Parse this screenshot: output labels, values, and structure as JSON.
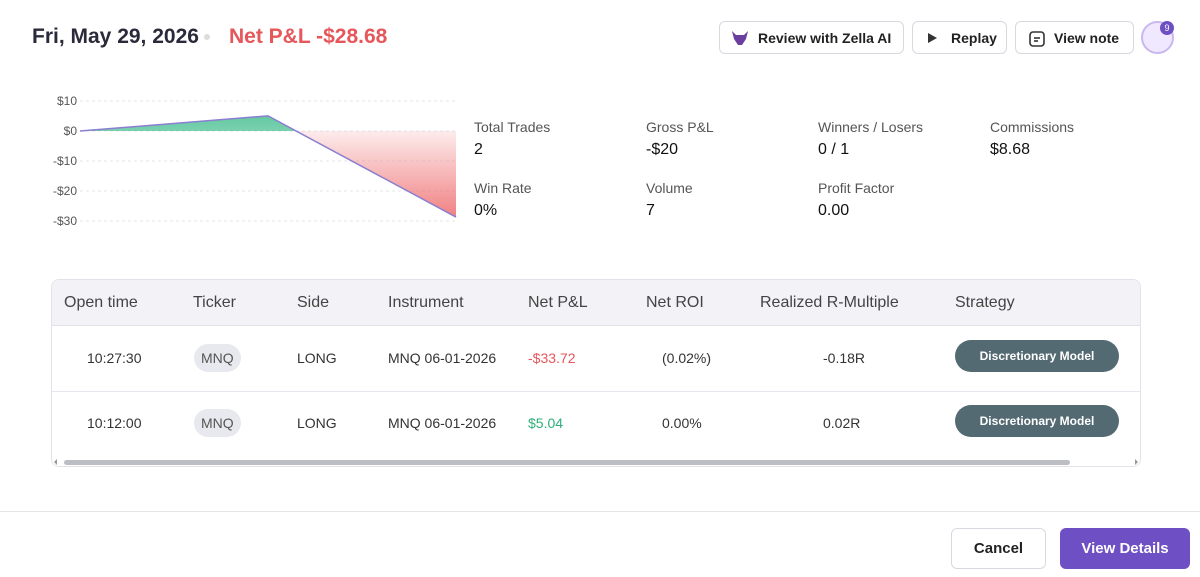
{
  "header": {
    "date": "Fri, May 29, 2026",
    "net_pnl": "Net P&L -$28.68",
    "buttons": [
      "Review with Zella AI",
      "Replay",
      "View note"
    ],
    "avatar_badge": "9"
  },
  "chart_data": {
    "type": "line",
    "categories": [
      null,
      null,
      null
    ],
    "values": [
      0,
      5.04,
      -28.68
    ],
    "color": "#8a7fd0",
    "ylim": [
      -30,
      10
    ],
    "yticks": [
      {
        "value": 10,
        "label": "$10"
      },
      {
        "value": 0,
        "label": "$0"
      },
      {
        "value": -10,
        "label": "-$10"
      },
      {
        "value": -20,
        "label": "-$20"
      },
      {
        "value": -30,
        "label": "-$30"
      }
    ],
    "grid": true
  },
  "stats": [
    {
      "label": "Total Trades",
      "value": "2"
    },
    {
      "label": "Gross P&L",
      "value": "-$20"
    },
    {
      "label": "Winners / Losers",
      "value": "0 / 1"
    },
    {
      "label": "Commissions",
      "value": "$8.68"
    },
    {
      "label": "Win Rate",
      "value": "0%"
    },
    {
      "label": "Volume",
      "value": "7"
    },
    {
      "label": "Profit Factor",
      "value": "0.00"
    }
  ],
  "table": {
    "columns": [
      "Open time",
      "Ticker",
      "Side",
      "Instrument",
      "Net P&L",
      "Net ROI",
      "Realized R-Multiple",
      "Strategy"
    ],
    "rows": [
      [
        "10:27:30",
        "MNQ",
        "LONG",
        "MNQ 06-01-2026",
        "-$33.72",
        "(0.02%)",
        "-0.18R",
        "Discretionary Model"
      ],
      [
        "10:12:00",
        "MNQ",
        "LONG",
        "MNQ 06-01-2026",
        "$5.04",
        "0.00%",
        "0.02R",
        "Discretionary Model"
      ]
    ]
  },
  "footer": {
    "cancel": "Cancel",
    "view_details": "View Details"
  }
}
